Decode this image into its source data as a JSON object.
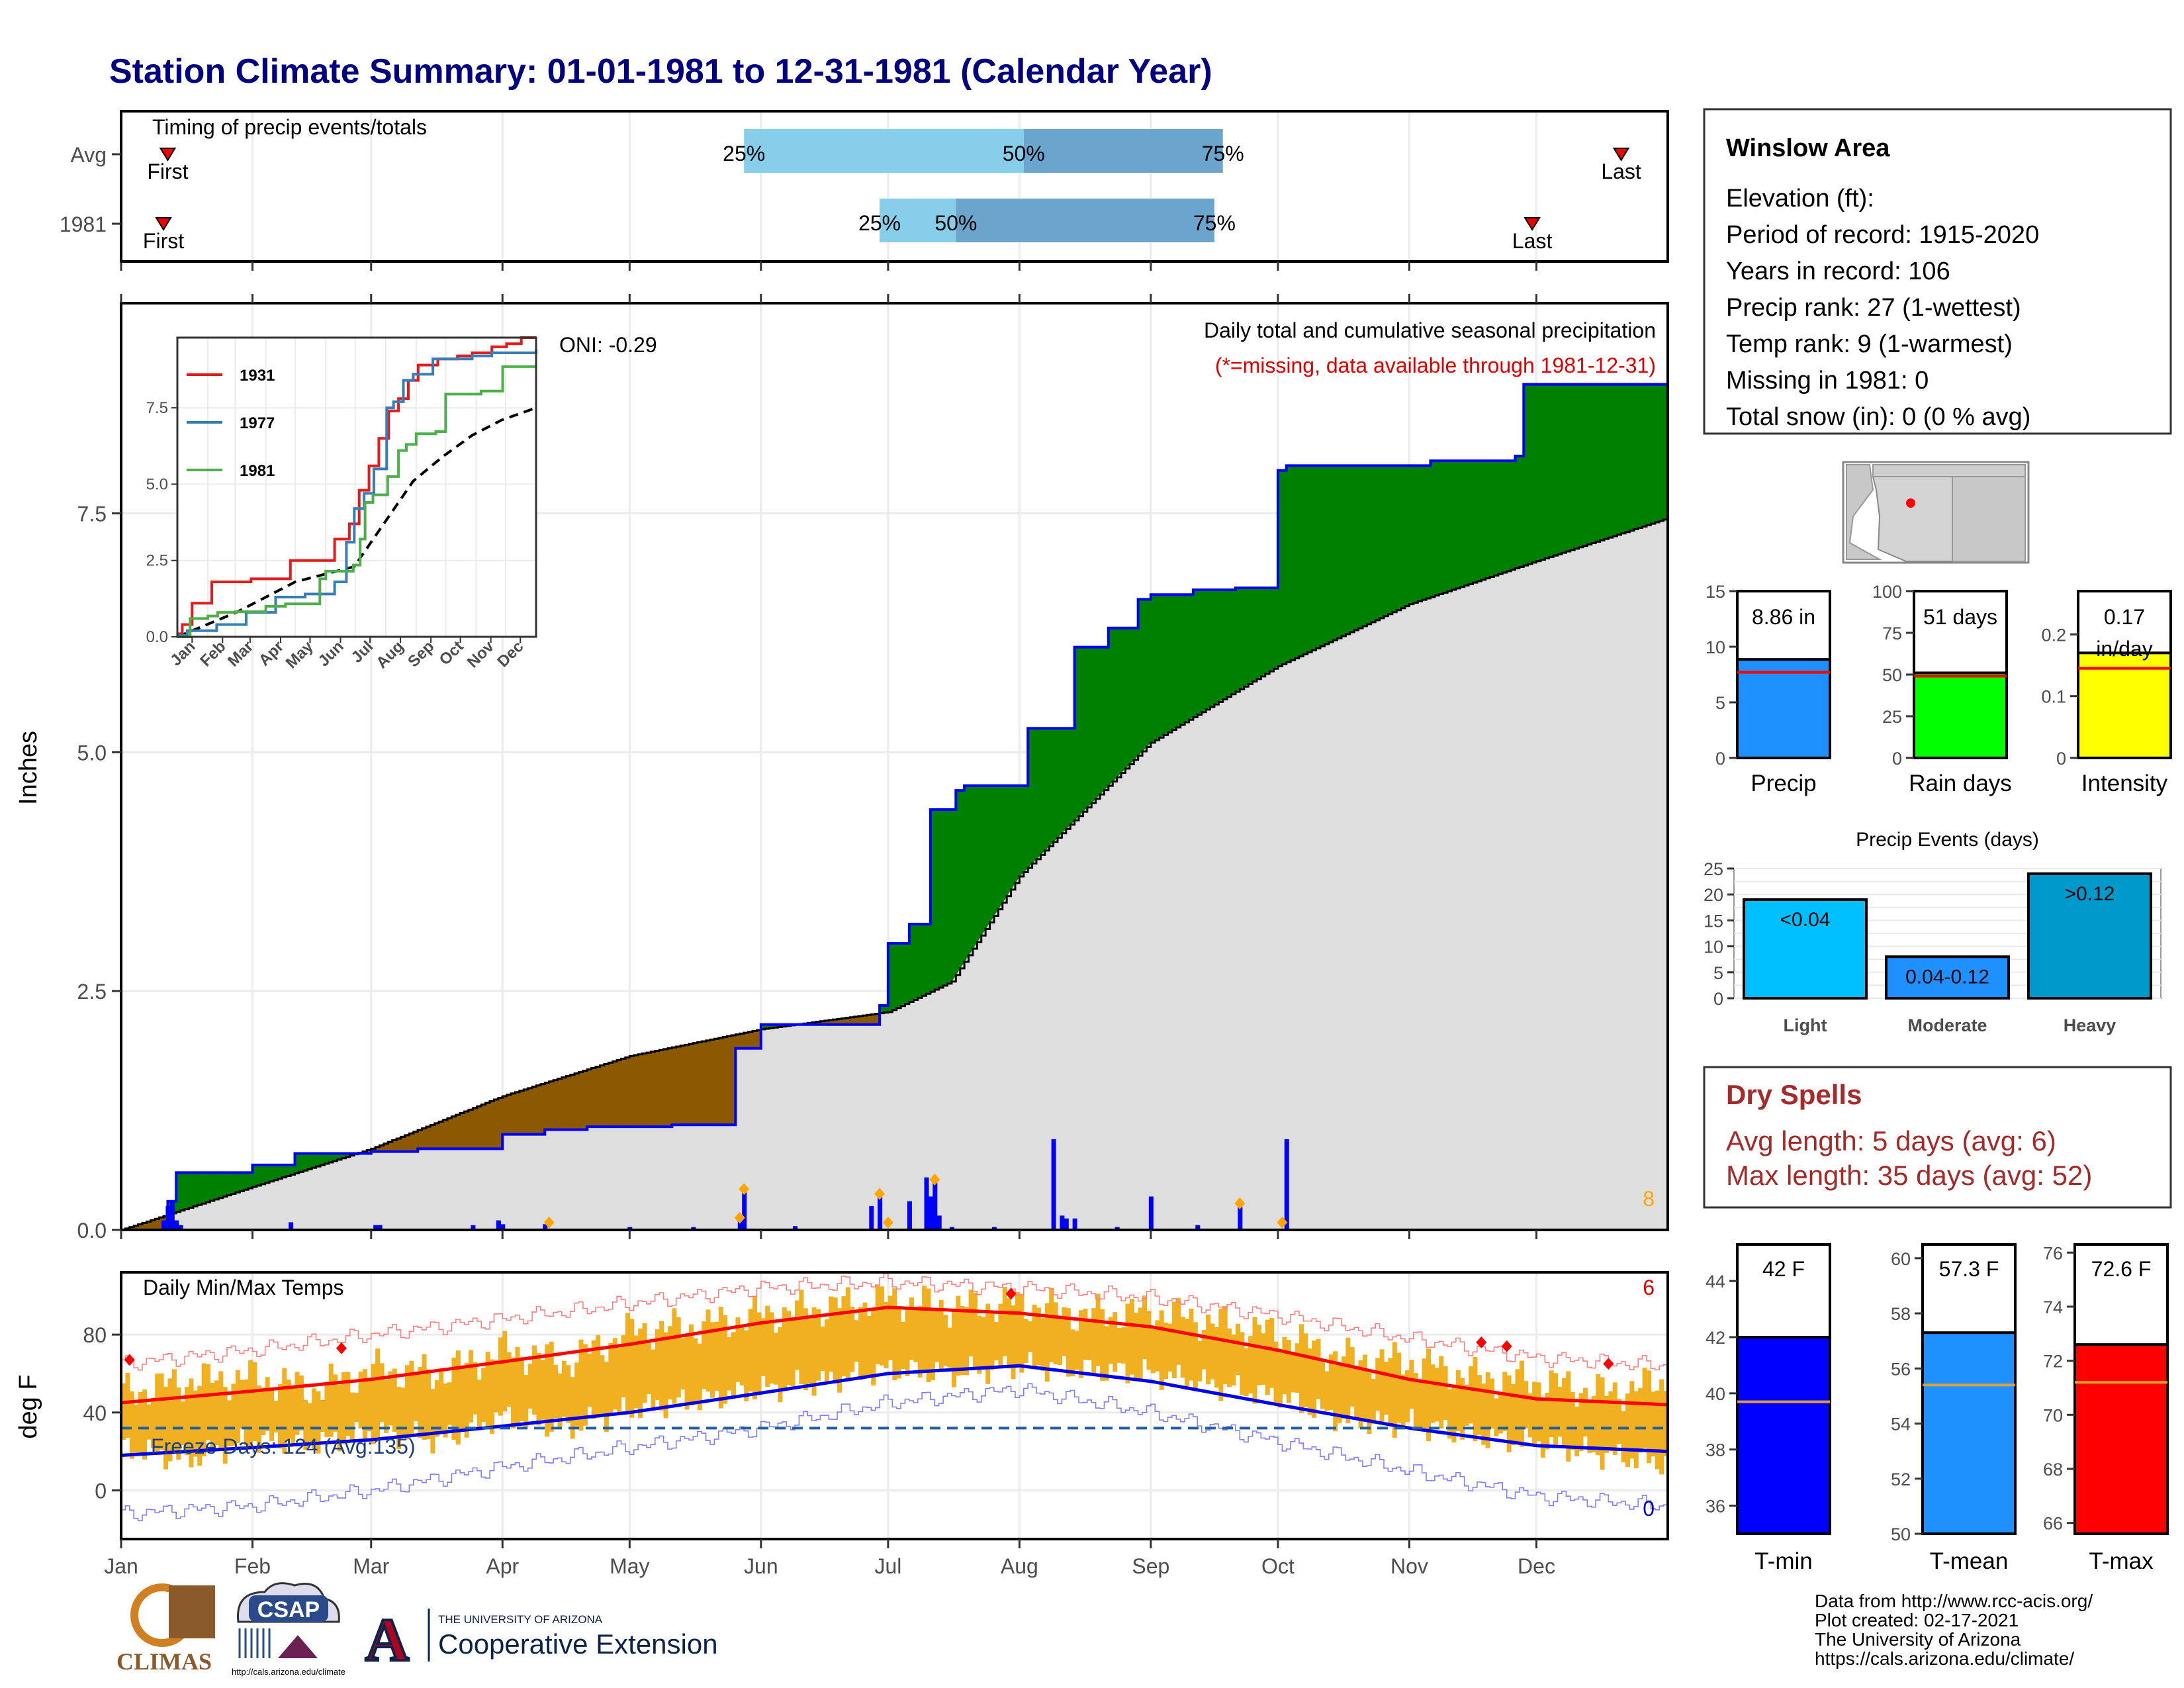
{
  "title": "Station Climate Summary: 01-01-1981 to 12-31-1981 (Calendar Year)",
  "months": [
    "Jan",
    "Feb",
    "Mar",
    "Apr",
    "May",
    "Jun",
    "Jul",
    "Aug",
    "Sep",
    "Oct",
    "Nov",
    "Dec"
  ],
  "timing": {
    "label": "Timing of precip events/totals",
    "rows": [
      {
        "name": "Avg",
        "first_doy": 11,
        "p25_doy": 147,
        "p50_doy": 213,
        "p75_doy": 260,
        "last_doy": 354
      },
      {
        "name": "1981",
        "first_doy": 10,
        "p25_doy": 179,
        "p50_doy": 197,
        "p75_doy": 258,
        "last_doy": 333
      }
    ],
    "first_label": "First",
    "last_label": "Last",
    "p25_label": "25%",
    "p50_label": "50%",
    "p75_label": "75%"
  },
  "chart_data": [
    {
      "type": "area",
      "title": "Daily total and cumulative seasonal precipitation",
      "subtitle": "(*=missing, data available through 1981-12-31)",
      "ylabel": "Inches",
      "ylim": [
        0,
        9.7
      ],
      "yticks": [
        0.0,
        2.5,
        5.0,
        7.5
      ],
      "oni_label": "ONI: -0.29",
      "corner_count": "8",
      "avg_cumulative": {
        "x": [
          0,
          31,
          59,
          90,
          120,
          151,
          181,
          196,
          212,
          243,
          273,
          304,
          334,
          365
        ],
        "y": [
          0,
          0.45,
          0.85,
          1.4,
          1.82,
          2.1,
          2.28,
          2.6,
          3.7,
          5.1,
          5.9,
          6.55,
          7.0,
          7.45
        ]
      },
      "observed_cumulative": {
        "x": [
          0,
          10,
          11,
          13,
          31,
          41,
          59,
          70,
          90,
          100,
          110,
          130,
          145,
          151,
          175,
          179,
          181,
          186,
          191,
          197,
          199,
          210,
          214,
          225,
          230,
          233,
          240,
          243,
          253,
          263,
          273,
          275,
          309,
          329,
          330,
          331,
          365
        ],
        "y": [
          0,
          0,
          0.3,
          0.6,
          0.68,
          0.8,
          0.82,
          0.85,
          1.0,
          1.05,
          1.08,
          1.1,
          1.9,
          2.15,
          2.15,
          2.35,
          3.0,
          3.2,
          4.4,
          4.6,
          4.65,
          4.65,
          5.25,
          6.1,
          6.1,
          6.3,
          6.6,
          6.65,
          6.7,
          6.72,
          7.95,
          8.0,
          8.05,
          8.1,
          8.1,
          8.85,
          8.85
        ]
      },
      "daily_bars": {
        "x": [
          10,
          11,
          12,
          13,
          14,
          40,
          60,
          61,
          83,
          89,
          90,
          100,
          120,
          135,
          146,
          147,
          159,
          177,
          179,
          186,
          190,
          191,
          192,
          193,
          196,
          206,
          220,
          222,
          223,
          225,
          235,
          243,
          254,
          264,
          275
        ],
        "y": [
          0.1,
          0.25,
          0.3,
          0.1,
          0.05,
          0.08,
          0.05,
          0.05,
          0.05,
          0.1,
          0.06,
          0.06,
          0.03,
          0.03,
          0.1,
          0.4,
          0.04,
          0.25,
          0.35,
          0.3,
          0.55,
          0.35,
          0.5,
          0.15,
          0.03,
          0.03,
          0.95,
          0.15,
          0.12,
          0.12,
          0.03,
          0.35,
          0.05,
          0.25,
          0.95
        ]
      },
      "markers_x": [
        101,
        146,
        147,
        179,
        181,
        192,
        264,
        274
      ]
    },
    {
      "type": "line",
      "title": "",
      "years": [
        {
          "name": "1931",
          "color": "#e41a1c",
          "x": [
            0,
            5,
            15,
            35,
            60,
            75,
            90,
            115,
            150,
            160,
            175,
            185,
            195,
            205,
            215,
            225,
            235,
            245,
            265,
            285,
            300,
            320,
            335,
            350,
            365
          ],
          "y": [
            0.1,
            0.4,
            1.1,
            1.8,
            1.8,
            1.9,
            1.9,
            2.5,
            2.5,
            3.2,
            3.7,
            4.8,
            5.6,
            6.5,
            7.4,
            7.8,
            8.4,
            8.9,
            9.1,
            9.2,
            9.3,
            9.5,
            9.6,
            9.8,
            9.8
          ]
        },
        {
          "name": "1977",
          "color": "#377eb8",
          "x": [
            0,
            10,
            40,
            70,
            100,
            130,
            160,
            172,
            180,
            190,
            200,
            213,
            220,
            230,
            240,
            260,
            275,
            300,
            320,
            340,
            365
          ],
          "y": [
            0.05,
            0.2,
            0.4,
            0.8,
            1.3,
            1.4,
            1.8,
            3.1,
            4.2,
            4.7,
            5.5,
            7.5,
            7.7,
            8.4,
            8.6,
            9.1,
            9.1,
            9.2,
            9.3,
            9.3,
            9.4
          ]
        },
        {
          "name": "1981",
          "color": "#4daf4a",
          "x": [
            0,
            10,
            13,
            31,
            41,
            59,
            90,
            110,
            145,
            151,
            179,
            186,
            191,
            199,
            214,
            225,
            233,
            243,
            263,
            273,
            309,
            331,
            365
          ],
          "y": [
            0,
            0,
            0.6,
            0.68,
            0.8,
            0.82,
            1.0,
            1.08,
            1.9,
            2.15,
            2.35,
            3.2,
            4.4,
            4.65,
            5.25,
            6.1,
            6.3,
            6.65,
            6.72,
            7.95,
            8.05,
            8.85,
            8.85
          ]
        }
      ],
      "avg_x": [
        0,
        60,
        120,
        180,
        210,
        240,
        270,
        300,
        330,
        365
      ],
      "avg_y": [
        0,
        0.8,
        1.8,
        2.3,
        3.7,
        5.1,
        5.9,
        6.6,
        7.1,
        7.5
      ],
      "yticks": [
        0.0,
        2.5,
        5.0,
        7.5
      ],
      "ylim": [
        0,
        9.8
      ]
    },
    {
      "type": "bar",
      "title": "",
      "panels": [
        {
          "name": "Precip",
          "label": "8.86 in",
          "value": 8.86,
          "avg": 7.7,
          "ylim": [
            0,
            15
          ],
          "yticks": [
            0,
            5,
            10,
            15
          ],
          "color": "#1e90ff"
        },
        {
          "name": "Rain days",
          "label": "51 days",
          "value": 51,
          "avg": 49,
          "ylim": [
            0,
            100
          ],
          "yticks": [
            0,
            25,
            50,
            75,
            100
          ],
          "color": "#00ff00"
        },
        {
          "name": "Intensity",
          "label": "0.17 in/day",
          "value": 0.17,
          "avg": 0.145,
          "ylim": [
            0,
            0.27
          ],
          "yticks": [
            0.0,
            0.1,
            0.2
          ],
          "color": "#ffff00"
        }
      ]
    },
    {
      "type": "bar",
      "title": "Precip Events (days)",
      "categories": [
        "Light",
        "Moderate",
        "Heavy"
      ],
      "bar_labels": [
        "<0.04",
        "0.04-0.12",
        ">0.12"
      ],
      "values": [
        19,
        8,
        24
      ],
      "ylim": [
        0,
        25
      ],
      "yticks": [
        0,
        5,
        10,
        15,
        20,
        25
      ],
      "colors": [
        "#00bfff",
        "#1e90ff",
        "#0099cc"
      ]
    },
    {
      "type": "line",
      "title": "Daily Min/Max Temps",
      "ylabel": "deg F",
      "ylim": [
        -25,
        112
      ],
      "yticks": [
        0,
        40,
        80
      ],
      "freeze_label": "Freeze Days: 124 (Avg:135)",
      "freeze_line": 32,
      "corner_high": "6",
      "corner_low": "0",
      "norm_max": {
        "x": [
          0,
          31,
          59,
          90,
          120,
          151,
          181,
          212,
          243,
          273,
          304,
          334,
          365
        ],
        "y": [
          45,
          51,
          57,
          66,
          75,
          86,
          94,
          91,
          84,
          72,
          57,
          47,
          44
        ]
      },
      "norm_min": {
        "x": [
          0,
          31,
          59,
          90,
          120,
          151,
          181,
          212,
          243,
          273,
          304,
          334,
          365
        ],
        "y": [
          18,
          22,
          26,
          33,
          40,
          50,
          60,
          64,
          56,
          44,
          32,
          23,
          20
        ]
      },
      "rec_max": {
        "x": [
          0,
          31,
          59,
          90,
          120,
          151,
          181,
          212,
          243,
          273,
          304,
          334,
          365
        ],
        "y": [
          65,
          72,
          80,
          88,
          96,
          104,
          107,
          104,
          99,
          90,
          78,
          68,
          64
        ]
      },
      "rec_min": {
        "x": [
          0,
          31,
          59,
          90,
          120,
          151,
          181,
          212,
          243,
          273,
          304,
          334,
          365
        ],
        "y": [
          -12,
          -8,
          0,
          12,
          22,
          32,
          45,
          52,
          40,
          25,
          10,
          -3,
          -8
        ]
      },
      "obs_max": {
        "x": [
          0,
          15,
          31,
          45,
          59,
          75,
          90,
          105,
          120,
          135,
          151,
          166,
          181,
          196,
          212,
          227,
          243,
          258,
          273,
          288,
          304,
          319,
          334,
          350,
          365
        ],
        "y": [
          50,
          56,
          58,
          52,
          62,
          60,
          72,
          66,
          82,
          84,
          90,
          94,
          98,
          94,
          96,
          90,
          92,
          86,
          80,
          68,
          66,
          58,
          56,
          50,
          56
        ]
      },
      "obs_min": {
        "x": [
          0,
          15,
          31,
          45,
          59,
          75,
          90,
          105,
          120,
          135,
          151,
          166,
          181,
          196,
          212,
          227,
          243,
          258,
          273,
          288,
          304,
          319,
          334,
          350,
          365
        ],
        "y": [
          22,
          16,
          26,
          24,
          30,
          26,
          38,
          32,
          42,
          46,
          52,
          56,
          62,
          60,
          64,
          62,
          60,
          54,
          48,
          36,
          34,
          28,
          24,
          18,
          14
        ]
      },
      "record_markers": {
        "x": [
          2,
          52,
          210,
          321,
          327,
          351
        ],
        "y": [
          67,
          73,
          101,
          76,
          74,
          65
        ]
      }
    },
    {
      "type": "bar",
      "title": "",
      "panels": [
        {
          "name": "T-min",
          "label": "42 F",
          "value": 42,
          "avg": 39.7,
          "ylim": [
            35,
            45.3
          ],
          "yticks": [
            36,
            38,
            40,
            42,
            44
          ],
          "color": "#0000ff"
        },
        {
          "name": "T-mean",
          "label": "57.3 F",
          "value": 57.3,
          "avg": 55.4,
          "ylim": [
            50,
            60.5
          ],
          "yticks": [
            50,
            52,
            54,
            56,
            58,
            60
          ],
          "color": "#1e90ff"
        },
        {
          "name": "T-max",
          "label": "72.6 F",
          "value": 72.6,
          "avg": 71.2,
          "ylim": [
            65.6,
            76.3
          ],
          "yticks": [
            66,
            68,
            70,
            72,
            74,
            76
          ],
          "color": "#ff0000"
        }
      ]
    }
  ],
  "station": {
    "name": "Winslow Area",
    "lines": [
      "Elevation (ft):",
      "Period of record: 1915-2020",
      "Years in record: 106",
      "Precip rank: 27 (1-wettest)",
      "Temp rank: 9 (1-warmest)",
      "Missing in 1981: 0",
      "Total snow (in): 0 (0 % avg)"
    ]
  },
  "dry_spells": {
    "title": "Dry Spells",
    "lines": [
      "Avg length: 5 days (avg: 6)",
      "Max length: 35 days (avg: 52)"
    ]
  },
  "credits": [
    "Data from http://www.rcc-acis.org/",
    "Plot created: 02-17-2021",
    "The University of Arizona",
    "https://cals.arizona.edu/climate/"
  ],
  "logos": {
    "climas": "CLIMAS",
    "csap": "CSAP",
    "csap_url": "http://cals.arizona.edu/climate",
    "ua_small": "THE UNIVERSITY OF ARIZONA",
    "ua_big": "Cooperative Extension"
  },
  "colors": {
    "title": "#000080",
    "green": "#008000",
    "brown": "#8b5a00",
    "blue": "#0000ff",
    "gray": "#dedede",
    "orange": "#f0b020",
    "dry": "#a52a2a"
  }
}
